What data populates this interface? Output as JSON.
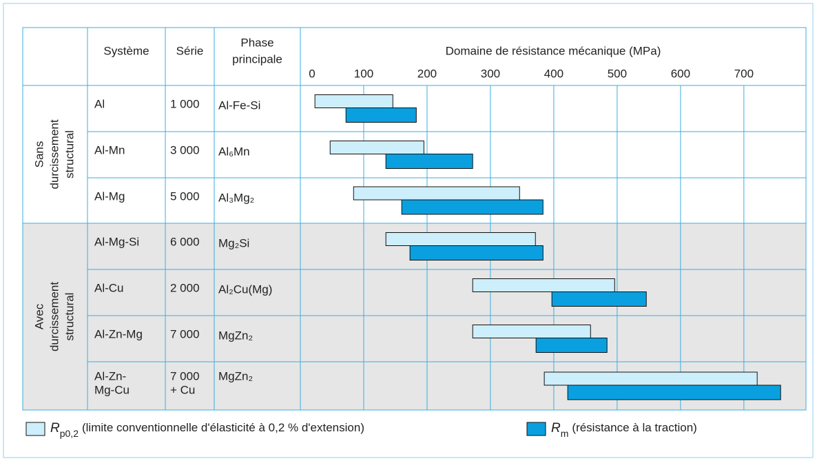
{
  "chart_data": {
    "type": "range-bar",
    "title": "Domaine de résistance mécanique (MPa)",
    "columns": [
      "Système",
      "Série",
      [
        "Phase",
        "principale"
      ]
    ],
    "groups": [
      {
        "label": [
          "Sans",
          "durcissement",
          "structural"
        ],
        "rows": [
          0,
          1,
          2
        ]
      },
      {
        "label": [
          "Avec",
          "durcissement",
          "structural"
        ],
        "rows": [
          3,
          4,
          5,
          6
        ]
      }
    ],
    "rows": [
      {
        "system": "Al",
        "serie": "1 000",
        "phase": "Al-Fe-Si"
      },
      {
        "system": "Al-Mn",
        "serie": "3 000",
        "phase": "Al₆Mn"
      },
      {
        "system": "Al-Mg",
        "serie": "5 000",
        "phase": "Al₃Mg₂"
      },
      {
        "system": "Al-Mg-Si",
        "serie": "6 000",
        "phase": "Mg₂Si"
      },
      {
        "system": "Al-Cu",
        "serie": "2 000",
        "phase": "Al₂Cu(Mg)"
      },
      {
        "system": "Al-Zn-Mg",
        "serie": "7 000",
        "phase": "MgZn₂"
      },
      {
        "system": [
          "Al-Zn-",
          "Mg-Cu"
        ],
        "serie": [
          "7 000",
          "+ Cu"
        ],
        "phase": "MgZn₂"
      }
    ],
    "series": [
      {
        "symbol": "R",
        "sub": "p0,2",
        "name": "(limite conventionnelle d'élasticité à 0,2 % d'extension)",
        "color": "#cdeefb",
        "values": [
          [
            23,
            146
          ],
          [
            47,
            195
          ],
          [
            84,
            346
          ],
          [
            135,
            371
          ],
          [
            272,
            496
          ],
          [
            272,
            458
          ],
          [
            385,
            721
          ]
        ]
      },
      {
        "symbol": "R",
        "sub": "m",
        "name": "(résistance à la traction)",
        "color": "#0aa0e0",
        "values": [
          [
            72,
            183
          ],
          [
            135,
            272
          ],
          [
            160,
            383
          ],
          [
            173,
            383
          ],
          [
            397,
            546
          ],
          [
            372,
            484
          ],
          [
            422,
            758
          ]
        ]
      }
    ],
    "xlim": [
      0,
      798
    ],
    "xticks": [
      0,
      100,
      200,
      300,
      400,
      500,
      600,
      700
    ],
    "grid": true
  }
}
